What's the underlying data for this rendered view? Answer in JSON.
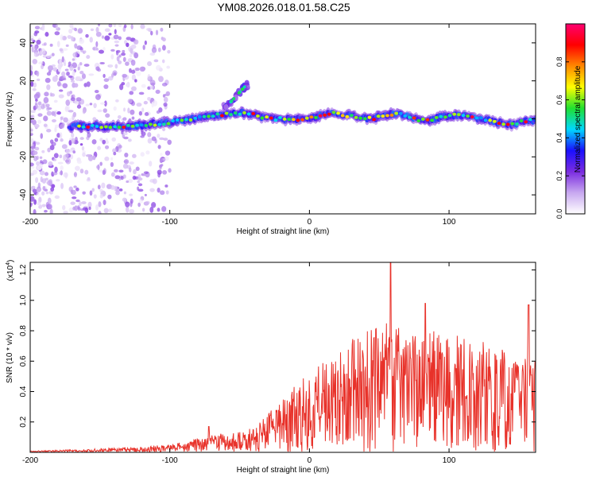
{
  "title": "YM08.2026.018.01.58.C25",
  "colors": {
    "background": "#ffffff",
    "line": "#e8322a",
    "axis": "#000000",
    "colorbar_stops": [
      "#ffffff",
      "#c8a8f0",
      "#7a2be0",
      "#1a10ff",
      "#00d8ff",
      "#20e030",
      "#ffff00",
      "#ff8800",
      "#ff0000",
      "#ff0070"
    ]
  },
  "chart_data": [
    {
      "type": "heatmap",
      "name": "spectrogram",
      "xlabel": "Height of straight line (km)",
      "ylabel": "Frequency (Hz)",
      "xlim": [
        -200,
        162
      ],
      "ylim": [
        -50,
        50
      ],
      "xticks": [
        -200,
        -100,
        0,
        100
      ],
      "xtick_labels": [
        "-200",
        "-100",
        "0",
        "100"
      ],
      "yticks": [
        -40,
        -20,
        0,
        20,
        40
      ],
      "ytick_labels": [
        "-40",
        "-20",
        "0",
        "20",
        "40"
      ],
      "ridge": {
        "x": [
          -172,
          -150,
          -130,
          -115,
          -100,
          -85,
          -75,
          -65,
          -55,
          -45,
          -35,
          -25,
          -15,
          -5,
          5,
          15,
          25,
          35,
          45,
          55,
          65,
          75,
          85,
          95,
          105,
          115,
          125,
          135,
          145,
          155,
          162
        ],
        "y": [
          -4,
          -4,
          -4,
          -3,
          -2,
          0,
          1,
          2,
          3,
          3,
          1,
          0,
          0,
          0,
          1,
          3,
          2,
          1,
          0,
          2,
          3,
          0,
          -1,
          1,
          2,
          1,
          0,
          -2,
          -3,
          -1,
          -1
        ]
      },
      "branch": {
        "x": [
          -60,
          -55,
          -50,
          -45
        ],
        "y": [
          6,
          10,
          14,
          18
        ]
      },
      "colorbar": {
        "label": "Normalized spectral amplitude",
        "range": [
          0,
          1
        ],
        "ticks": [
          0.0,
          0.2,
          0.4,
          0.6,
          0.8
        ],
        "tick_labels": [
          "0.0",
          "0.2",
          "0.4",
          "0.6",
          "0.8"
        ]
      }
    },
    {
      "type": "line",
      "name": "snr",
      "xlabel": "Height of straight line (km)",
      "ylabel": "SNR (10 * v/v)",
      "scale_label": "(x10",
      "scale_exponent": "4",
      "scale_close": ")",
      "xlim": [
        -200,
        162
      ],
      "ylim": [
        0,
        1.25
      ],
      "xticks": [
        -200,
        -100,
        0,
        100
      ],
      "xtick_labels": [
        "-200",
        "-100",
        "0",
        "100"
      ],
      "yticks": [
        0.2,
        0.4,
        0.6,
        0.8,
        1.0,
        1.2
      ],
      "ytick_labels": [
        "0.2",
        "0.4",
        "0.6",
        "0.8",
        "1.0",
        "1.2"
      ],
      "envelope": {
        "x": [
          -200,
          -180,
          -160,
          -140,
          -120,
          -100,
          -90,
          -80,
          -70,
          -60,
          -50,
          -40,
          -30,
          -20,
          -10,
          0,
          10,
          20,
          30,
          40,
          50,
          60,
          70,
          80,
          90,
          100,
          110,
          120,
          130,
          140,
          150,
          162
        ],
        "y": [
          0.01,
          0.015,
          0.02,
          0.03,
          0.04,
          0.05,
          0.07,
          0.09,
          0.12,
          0.13,
          0.14,
          0.16,
          0.25,
          0.35,
          0.45,
          0.52,
          0.6,
          0.65,
          0.75,
          0.8,
          0.85,
          0.85,
          0.8,
          0.82,
          0.8,
          0.75,
          0.78,
          0.75,
          0.7,
          0.72,
          0.7,
          0.65
        ]
      },
      "peaks": [
        {
          "x": -72,
          "y": 0.17
        },
        {
          "x": 58,
          "y": 1.26
        },
        {
          "x": 83,
          "y": 0.98
        },
        {
          "x": 157,
          "y": 0.97
        }
      ]
    }
  ]
}
